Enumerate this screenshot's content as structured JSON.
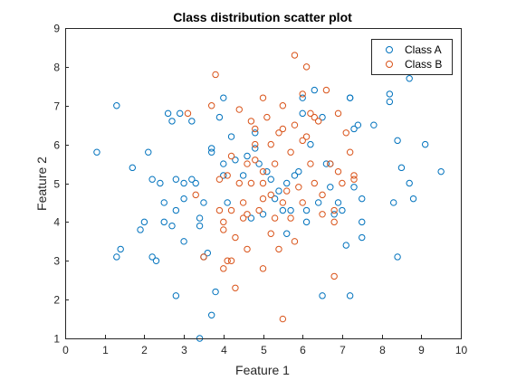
{
  "chart_data": {
    "type": "scatter",
    "title": "Class distribution scatter plot",
    "xlabel": "Feature 1",
    "ylabel": "Feature 2",
    "xlim": [
      0,
      10
    ],
    "ylim": [
      1,
      9
    ],
    "xticks": [
      "0",
      "1",
      "2",
      "3",
      "4",
      "5",
      "6",
      "7",
      "8",
      "9",
      "10"
    ],
    "yticks": [
      "1",
      "2",
      "3",
      "4",
      "5",
      "6",
      "7",
      "8",
      "9"
    ],
    "grid": false,
    "legend_placement": "top-right",
    "marker": "open-circle",
    "series": [
      {
        "name": "Class A",
        "color": "#0072BD",
        "points": [
          [
            0.8,
            5.8
          ],
          [
            1.3,
            3.1
          ],
          [
            1.3,
            7.0
          ],
          [
            1.4,
            3.3
          ],
          [
            1.7,
            5.4
          ],
          [
            1.9,
            3.8
          ],
          [
            2.0,
            4.0
          ],
          [
            2.1,
            5.8
          ],
          [
            2.2,
            3.1
          ],
          [
            2.2,
            5.1
          ],
          [
            2.3,
            3.0
          ],
          [
            2.4,
            5.0
          ],
          [
            2.5,
            4.5
          ],
          [
            2.5,
            4.0
          ],
          [
            2.6,
            6.8
          ],
          [
            2.7,
            3.9
          ],
          [
            2.7,
            6.6
          ],
          [
            2.8,
            5.1
          ],
          [
            2.8,
            4.3
          ],
          [
            2.8,
            2.1
          ],
          [
            2.9,
            6.8
          ],
          [
            3.0,
            5.0
          ],
          [
            3.0,
            4.6
          ],
          [
            3.0,
            3.5
          ],
          [
            3.2,
            5.1
          ],
          [
            3.2,
            6.6
          ],
          [
            3.3,
            5.0
          ],
          [
            3.4,
            3.9
          ],
          [
            3.4,
            4.1
          ],
          [
            3.5,
            4.5
          ],
          [
            3.6,
            3.2
          ],
          [
            3.7,
            5.9
          ],
          [
            3.7,
            5.8
          ],
          [
            3.7,
            1.6
          ],
          [
            3.8,
            2.2
          ],
          [
            3.9,
            6.7
          ],
          [
            4.0,
            7.2
          ],
          [
            4.0,
            5.5
          ],
          [
            4.0,
            5.2
          ],
          [
            4.1,
            4.5
          ],
          [
            4.2,
            6.2
          ],
          [
            4.3,
            5.6
          ],
          [
            4.5,
            5.2
          ],
          [
            4.6,
            5.7
          ],
          [
            4.7,
            4.1
          ],
          [
            4.8,
            5.9
          ],
          [
            4.8,
            6.3
          ],
          [
            4.9,
            5.5
          ],
          [
            5.0,
            4.2
          ],
          [
            5.1,
            5.3
          ],
          [
            5.2,
            5.1
          ],
          [
            5.3,
            4.6
          ],
          [
            5.4,
            4.8
          ],
          [
            5.5,
            4.3
          ],
          [
            5.6,
            5.0
          ],
          [
            5.7,
            4.3
          ],
          [
            5.8,
            5.2
          ],
          [
            5.9,
            5.3
          ],
          [
            6.0,
            7.2
          ],
          [
            6.0,
            6.8
          ],
          [
            6.1,
            4.3
          ],
          [
            6.2,
            6.0
          ],
          [
            6.3,
            7.4
          ],
          [
            6.4,
            4.5
          ],
          [
            6.5,
            6.7
          ],
          [
            6.5,
            2.1
          ],
          [
            6.6,
            5.5
          ],
          [
            6.7,
            4.9
          ],
          [
            6.7,
            5.5
          ],
          [
            6.8,
            4.2
          ],
          [
            6.9,
            4.5
          ],
          [
            7.0,
            4.3
          ],
          [
            7.1,
            3.4
          ],
          [
            7.2,
            7.2
          ],
          [
            7.2,
            7.2
          ],
          [
            7.2,
            2.1
          ],
          [
            7.3,
            6.4
          ],
          [
            7.3,
            4.9
          ],
          [
            7.4,
            6.5
          ],
          [
            7.5,
            4.6
          ],
          [
            7.5,
            4.0
          ],
          [
            7.5,
            3.6
          ],
          [
            7.8,
            6.5
          ],
          [
            8.2,
            7.3
          ],
          [
            8.2,
            7.1
          ],
          [
            8.3,
            4.5
          ],
          [
            8.4,
            6.1
          ],
          [
            8.4,
            3.1
          ],
          [
            8.5,
            5.4
          ],
          [
            8.7,
            7.7
          ],
          [
            8.7,
            5.0
          ],
          [
            8.8,
            4.6
          ],
          [
            9.1,
            6.0
          ],
          [
            9.5,
            5.3
          ],
          [
            3.4,
            1.0
          ],
          [
            5.6,
            3.7
          ],
          [
            3.5,
            3.1
          ],
          [
            6.1,
            4.0
          ]
        ]
      },
      {
        "name": "Class B",
        "color": "#D95319",
        "points": [
          [
            3.1,
            6.8
          ],
          [
            3.3,
            4.7
          ],
          [
            3.5,
            3.1
          ],
          [
            3.7,
            7.0
          ],
          [
            3.8,
            7.8
          ],
          [
            3.9,
            5.1
          ],
          [
            4.0,
            4.0
          ],
          [
            4.0,
            3.8
          ],
          [
            4.0,
            2.8
          ],
          [
            4.1,
            5.2
          ],
          [
            4.1,
            3.0
          ],
          [
            4.2,
            3.0
          ],
          [
            4.2,
            4.3
          ],
          [
            4.2,
            5.7
          ],
          [
            4.3,
            2.3
          ],
          [
            4.3,
            3.6
          ],
          [
            4.4,
            5.0
          ],
          [
            4.5,
            4.5
          ],
          [
            4.5,
            4.1
          ],
          [
            4.6,
            4.2
          ],
          [
            4.6,
            3.3
          ],
          [
            4.7,
            5.0
          ],
          [
            4.7,
            6.6
          ],
          [
            4.8,
            6.4
          ],
          [
            4.8,
            5.6
          ],
          [
            4.9,
            4.3
          ],
          [
            5.0,
            7.2
          ],
          [
            5.0,
            5.3
          ],
          [
            5.0,
            5.0
          ],
          [
            5.0,
            4.6
          ],
          [
            5.0,
            2.8
          ],
          [
            5.1,
            6.7
          ],
          [
            5.2,
            6.0
          ],
          [
            5.2,
            4.7
          ],
          [
            5.3,
            4.1
          ],
          [
            5.3,
            5.5
          ],
          [
            5.4,
            6.3
          ],
          [
            5.4,
            3.3
          ],
          [
            5.5,
            7.0
          ],
          [
            5.5,
            6.4
          ],
          [
            5.5,
            4.5
          ],
          [
            5.5,
            1.5
          ],
          [
            5.6,
            4.8
          ],
          [
            5.7,
            5.8
          ],
          [
            5.7,
            4.1
          ],
          [
            5.8,
            3.5
          ],
          [
            5.8,
            6.5
          ],
          [
            5.8,
            8.3
          ],
          [
            5.9,
            4.9
          ],
          [
            6.0,
            7.3
          ],
          [
            6.0,
            6.1
          ],
          [
            6.0,
            4.5
          ],
          [
            6.1,
            8.0
          ],
          [
            6.1,
            6.2
          ],
          [
            6.2,
            5.5
          ],
          [
            6.2,
            6.8
          ],
          [
            6.3,
            6.7
          ],
          [
            6.3,
            5.0
          ],
          [
            6.4,
            6.6
          ],
          [
            6.5,
            4.7
          ],
          [
            6.5,
            4.2
          ],
          [
            6.7,
            5.5
          ],
          [
            6.8,
            4.0
          ],
          [
            6.8,
            4.3
          ],
          [
            6.8,
            2.6
          ],
          [
            6.9,
            6.8
          ],
          [
            6.9,
            5.3
          ],
          [
            7.0,
            5.0
          ],
          [
            7.1,
            6.3
          ],
          [
            7.2,
            5.8
          ],
          [
            7.3,
            5.2
          ],
          [
            7.3,
            5.1
          ],
          [
            4.6,
            5.5
          ],
          [
            4.4,
            6.9
          ],
          [
            5.2,
            3.7
          ],
          [
            3.9,
            4.3
          ],
          [
            4.8,
            6.0
          ],
          [
            6.6,
            7.4
          ]
        ]
      }
    ]
  }
}
